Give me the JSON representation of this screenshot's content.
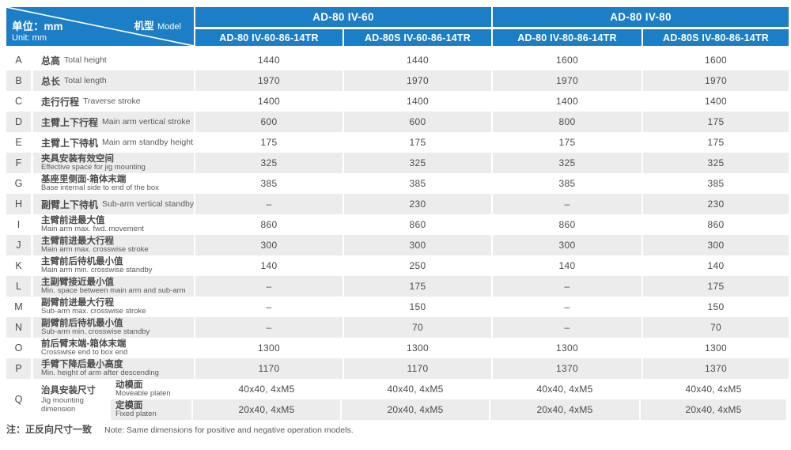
{
  "colors": {
    "accent_blue": "#1c7ec5",
    "stripe": "#ececec",
    "text": "#4b4b4b"
  },
  "header": {
    "corner": {
      "model_zh": "机型",
      "model_en": "Model",
      "unit_zh": "单位：mm",
      "unit_en": "Unit: mm"
    },
    "groups": [
      {
        "label": "AD-80 IV-60",
        "columns": [
          "AD-80 IV-60-86-14TR",
          "AD-80S IV-60-86-14TR"
        ]
      },
      {
        "label": "AD-80 IV-80",
        "columns": [
          "AD-80 IV-80-86-14TR",
          "AD-80S IV-80-86-14TR"
        ]
      }
    ]
  },
  "table": {
    "rows": [
      {
        "letter": "A",
        "zh": "总高",
        "en": "Total height",
        "layout": "inline",
        "values": [
          "1440",
          "1440",
          "1600",
          "1600"
        ]
      },
      {
        "letter": "B",
        "zh": "总长",
        "en": "Total length",
        "layout": "inline",
        "values": [
          "1970",
          "1970",
          "1970",
          "1970"
        ]
      },
      {
        "letter": "C",
        "zh": "走行行程",
        "en": "Traverse stroke",
        "layout": "inline",
        "values": [
          "1400",
          "1400",
          "1400",
          "1400"
        ]
      },
      {
        "letter": "D",
        "zh": "主臂上下行程",
        "en": "Main arm vertical stroke",
        "layout": "inline",
        "values": [
          "600",
          "600",
          "800",
          "175"
        ]
      },
      {
        "letter": "E",
        "zh": "主臂上下待机",
        "en": "Main arm standby height",
        "layout": "inline",
        "values": [
          "175",
          "175",
          "175",
          "175"
        ]
      },
      {
        "letter": "F",
        "zh": "夹具安装有效空间",
        "en": "Effective space for jig mounting",
        "layout": "stacked",
        "values": [
          "325",
          "325",
          "325",
          "325"
        ]
      },
      {
        "letter": "G",
        "zh": "基座里侧面-箱体末端",
        "en": "Base internal side to end of the box",
        "layout": "stacked",
        "values": [
          "385",
          "385",
          "385",
          "385"
        ]
      },
      {
        "letter": "H",
        "zh": "副臂上下待机",
        "en": "Sub-arm vertical standby",
        "layout": "inline",
        "values": [
          "–",
          "230",
          "–",
          "230"
        ]
      },
      {
        "letter": "I",
        "zh": "主臂前进最大值",
        "en": "Main arm max. fwd. movement",
        "layout": "stacked",
        "values": [
          "860",
          "860",
          "860",
          "860"
        ]
      },
      {
        "letter": "J",
        "zh": "主臂前进最大行程",
        "en": "Main arm max. crosswise stroke",
        "layout": "stacked",
        "values": [
          "300",
          "300",
          "300",
          "300"
        ]
      },
      {
        "letter": "K",
        "zh": "主臂前后待机最小值",
        "en": "Main arm min. crosswise standby",
        "layout": "stacked",
        "values": [
          "140",
          "250",
          "140",
          "140"
        ]
      },
      {
        "letter": "L",
        "zh": "主副臂接近最小值",
        "en": "Min. space between main arm and sub-arm",
        "layout": "stacked",
        "values": [
          "–",
          "175",
          "–",
          "175"
        ]
      },
      {
        "letter": "M",
        "zh": "副臂前进最大行程",
        "en": "Sub-arm max. crosswise stroke",
        "layout": "stacked",
        "values": [
          "–",
          "150",
          "–",
          "150"
        ]
      },
      {
        "letter": "N",
        "zh": "副臂前后待机最小值",
        "en": "Sub-arm min. crosswise standby",
        "layout": "stacked",
        "values": [
          "–",
          "70",
          "–",
          "70"
        ]
      },
      {
        "letter": "O",
        "zh": "前后臂末端-箱体末端",
        "en": "Crosswise end to box end",
        "layout": "stacked",
        "values": [
          "1300",
          "1300",
          "1300",
          "1300"
        ]
      },
      {
        "letter": "P",
        "zh": "手臂下降后最小高度",
        "en": "Min. height of arm after descending",
        "layout": "stacked",
        "values": [
          "1170",
          "1170",
          "1370",
          "1370"
        ]
      }
    ],
    "jig": {
      "letter": "Q",
      "zh": "治具安装尺寸",
      "en": "Jig mounting dimension",
      "sub_rows": [
        {
          "zh": "动模面",
          "en": "Moveable platen",
          "values": [
            "40x40, 4xM5",
            "40x40, 4xM5",
            "40x40, 4xM5",
            "40x40, 4xM5"
          ]
        },
        {
          "zh": "定模面",
          "en": "Fixed platen",
          "values": [
            "20x40, 4xM5",
            "20x40, 4xM5",
            "20x40, 4xM5",
            "20x40, 4xM5"
          ]
        }
      ]
    }
  },
  "note": {
    "zh": "注：正反向尺寸一致",
    "en": "Note: Same dimensions for positive and negative operation models."
  }
}
